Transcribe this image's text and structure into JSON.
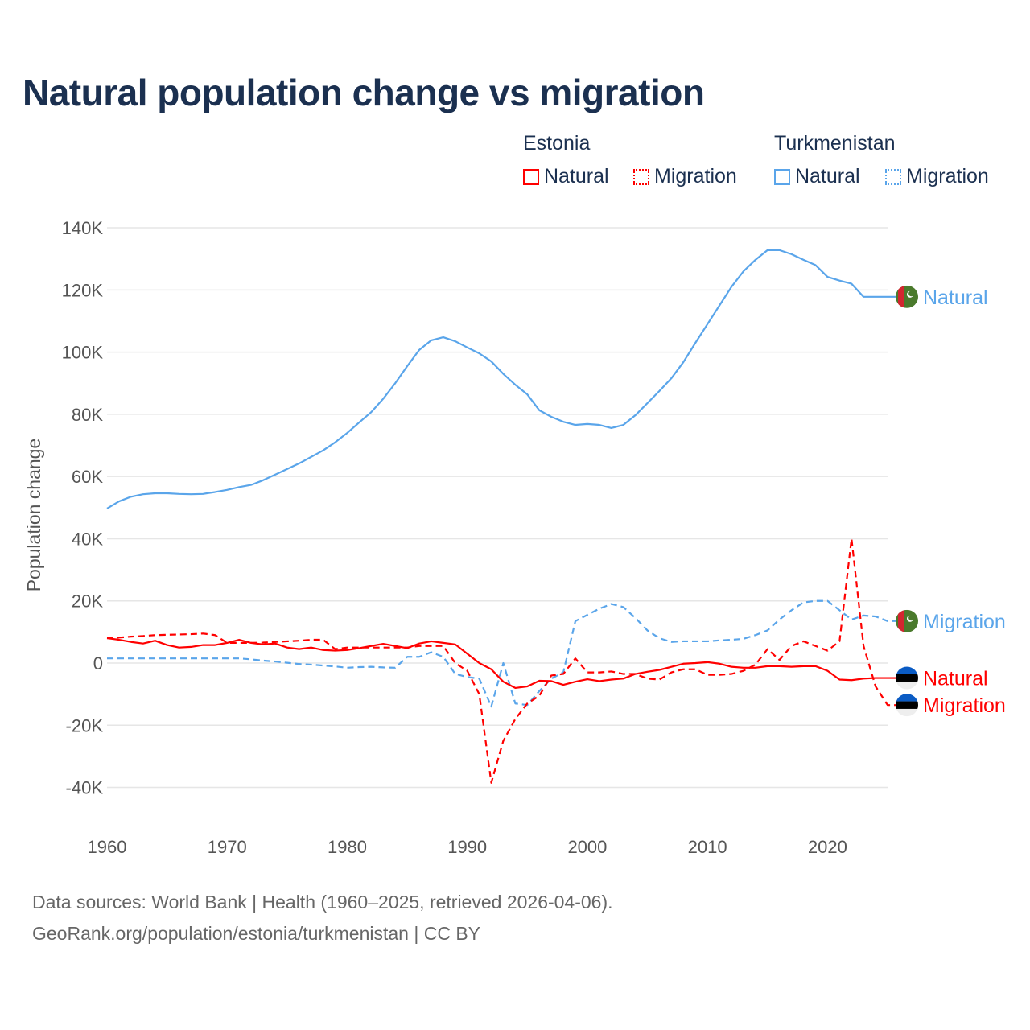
{
  "title": "Natural population change vs migration",
  "legend": {
    "groups": [
      {
        "country": "Estonia",
        "items": [
          {
            "label": "Natural",
            "style": "solid"
          },
          {
            "label": "Migration",
            "style": "dotted"
          }
        ],
        "color": "#ff0000"
      },
      {
        "country": "Turkmenistan",
        "items": [
          {
            "label": "Natural",
            "style": "solid"
          },
          {
            "label": "Migration",
            "style": "dotted"
          }
        ],
        "color": "#5aa5ea"
      }
    ]
  },
  "footer": {
    "line1": "Data sources: World Bank | Health (1960–2025, retrieved 2026-04-06).",
    "line2": "GeoRank.org/population/estonia/turkmenistan | CC BY"
  },
  "chart_data": {
    "type": "line",
    "title": "Natural population change vs migration",
    "xlabel": "",
    "ylabel": "Population change",
    "xlim": [
      1960,
      2025
    ],
    "ylim": [
      -50000,
      145000
    ],
    "x_ticks": [
      "1960",
      "1970",
      "1980",
      "1990",
      "2000",
      "2010",
      "2020"
    ],
    "x_tick_values": [
      1960,
      1970,
      1980,
      1990,
      2000,
      2010,
      2020
    ],
    "y_ticks": [
      "140K",
      "120K",
      "100K",
      "80K",
      "60K",
      "40K",
      "20K",
      "0",
      "-20K",
      "-40K"
    ],
    "y_tick_values": [
      140000,
      120000,
      100000,
      80000,
      60000,
      40000,
      20000,
      0,
      -20000,
      -40000
    ],
    "grid": true,
    "x_start": 1960,
    "units": "thousands",
    "series": [
      {
        "name": "Turkmenistan Natural",
        "end_label": "Natural",
        "country": "Turkmenistan",
        "color": "#5aa5ea",
        "dash": "solid",
        "values": [
          49.7,
          52,
          53.5,
          54.3,
          54.6,
          54.6,
          54.4,
          54.3,
          54.4,
          55,
          55.7,
          56.6,
          57.3,
          58.8,
          60.6,
          62.4,
          64.2,
          66.3,
          68.4,
          71,
          74,
          77.4,
          80.7,
          85,
          90,
          95.5,
          100.7,
          103.8,
          104.8,
          103.5,
          101.5,
          99.6,
          97,
          93,
          89.5,
          86.4,
          81.3,
          79.2,
          77.6,
          76.6,
          76.9,
          76.6,
          75.6,
          76.6,
          79.7,
          83.6,
          87.5,
          91.6,
          96.8,
          103,
          109,
          115,
          121,
          126,
          129.7,
          132.8,
          132.8,
          131.5,
          129.7,
          128,
          124.2,
          123,
          122,
          117.8,
          117.8,
          117.8
        ]
      },
      {
        "name": "Turkmenistan Migration",
        "end_label": "Migration",
        "country": "Turkmenistan",
        "color": "#5aa5ea",
        "dash": "dashed",
        "values": [
          1.5,
          1.5,
          1.5,
          1.5,
          1.5,
          1.5,
          1.5,
          1.5,
          1.5,
          1.5,
          1.5,
          1.5,
          1.2,
          0.8,
          0.5,
          0.1,
          -0.3,
          -0.5,
          -0.8,
          -1.1,
          -1.5,
          -1.3,
          -1.2,
          -1.4,
          -1.5,
          2,
          2,
          3.5,
          2,
          -3.5,
          -4.5,
          -5,
          -14,
          0,
          -13,
          -13.5,
          -9,
          -5,
          -3,
          13.5,
          15.5,
          17.5,
          19,
          18,
          14.5,
          10.5,
          8,
          6.8,
          7,
          7,
          7,
          7.3,
          7.5,
          7.8,
          9,
          10.5,
          14,
          17,
          19.5,
          20,
          20,
          17,
          14,
          15.3,
          15,
          13.5
        ]
      },
      {
        "name": "Estonia Natural",
        "end_label": "Natural",
        "country": "Estonia",
        "color": "#ff0000",
        "dash": "solid",
        "values": [
          8,
          7.5,
          6.8,
          6.3,
          7.2,
          5.8,
          5,
          5.2,
          5.8,
          5.8,
          6.5,
          7.5,
          6.5,
          6,
          6.3,
          5,
          4.5,
          5,
          4.2,
          4,
          4.2,
          4.8,
          5.5,
          6.2,
          5.5,
          4.8,
          6.3,
          7,
          6.5,
          6,
          3,
          0,
          -2,
          -6,
          -8,
          -7.5,
          -5.7,
          -5.8,
          -7,
          -6,
          -5.2,
          -5.8,
          -5.3,
          -5,
          -3.5,
          -2.8,
          -2.2,
          -1.2,
          -0.2,
          0,
          0.3,
          -0.2,
          -1.2,
          -1.5,
          -1.5,
          -1,
          -1,
          -1.2,
          -1,
          -1,
          -2.5,
          -5.3,
          -5.5,
          -5,
          -4.8,
          -4.8
        ]
      },
      {
        "name": "Estonia Migration",
        "end_label": "Migration",
        "country": "Estonia",
        "color": "#ff0000",
        "dash": "dashed",
        "values": [
          8,
          8.2,
          8.5,
          8.7,
          9,
          9.1,
          9.2,
          9.3,
          9.5,
          9,
          6.5,
          6.5,
          6.5,
          6.6,
          6.8,
          7,
          7.2,
          7.5,
          7.5,
          4.5,
          5,
          5,
          5,
          5,
          5,
          5,
          5.5,
          5.5,
          5.5,
          0,
          -2.5,
          -10,
          -38.5,
          -25,
          -18,
          -13,
          -10.5,
          -4,
          -3.5,
          1.5,
          -3,
          -3,
          -2.7,
          -3.5,
          -3.5,
          -5,
          -5.3,
          -3,
          -2,
          -2,
          -3.8,
          -3.8,
          -3.5,
          -2.5,
          -0.5,
          4.5,
          1,
          5.5,
          7,
          5.5,
          4,
          7,
          40,
          5.5,
          -7.5,
          -13.5
        ]
      }
    ]
  }
}
